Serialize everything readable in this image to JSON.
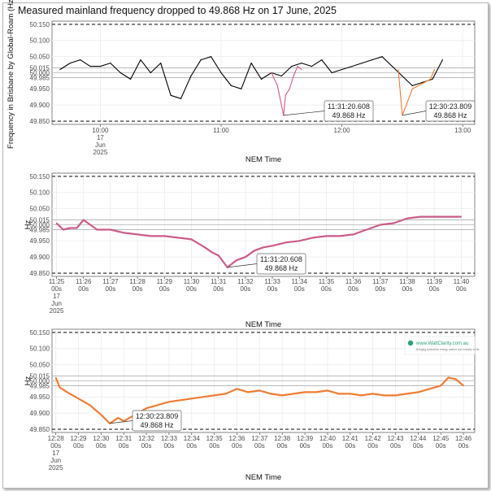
{
  "colors": {
    "full_day": "#000000",
    "first_drop": "#cc5c8a",
    "second_drop": "#ee7d33",
    "grid": "#ebebeb",
    "bound": "#222222",
    "ref": "#999999"
  },
  "logo": {
    "name": "www.WattClarity.com.au",
    "tagline": "Bringing Australia's energy market and industry to life"
  },
  "chart_data": [
    {
      "type": "line",
      "title": "Measured mainland frequency dropped to 49.868 Hz on 17 June, 2025",
      "xlabel": "NEM Time",
      "ylabel": "Frequency in Brisbane by Global-Roam (Hz)",
      "ylim": [
        49.84,
        50.16
      ],
      "yticks": [
        "49.850",
        "49.900",
        "49.950",
        "49.985",
        "50.000",
        "50.015",
        "50.050",
        "50.100",
        "50.150"
      ],
      "xlim": [
        "09:36",
        "13:06"
      ],
      "xticks": [
        {
          "t": "10:00",
          "label": [
            "10:00",
            "17",
            "Jun",
            "2025"
          ]
        },
        {
          "t": "11:00",
          "label": [
            "11:00"
          ]
        },
        {
          "t": "12:00",
          "label": [
            "12:00"
          ]
        },
        {
          "t": "13:00",
          "label": [
            "13:00"
          ]
        }
      ],
      "bound_lines": [
        49.85,
        50.15
      ],
      "ref_lines": [
        49.985,
        50.0,
        50.015
      ],
      "series": [
        {
          "color_key": "full_day",
          "x": [
            "09:40",
            "09:45",
            "09:50",
            "09:55",
            "10:00",
            "10:05",
            "10:10",
            "10:15",
            "10:20",
            "10:25",
            "10:30",
            "10:35",
            "10:40",
            "10:45",
            "10:50",
            "10:55",
            "11:00",
            "11:05",
            "11:10",
            "11:15",
            "11:20",
            "11:25",
            "11:30",
            "11:35",
            "11:40",
            "11:45",
            "11:50",
            "11:55",
            "12:00",
            "12:05",
            "12:10",
            "12:15",
            "12:20",
            "12:25",
            "12:30",
            "12:35",
            "12:40",
            "12:45",
            "12:50"
          ],
          "y": [
            50.01,
            50.03,
            50.04,
            50.02,
            50.02,
            50.03,
            50.0,
            49.98,
            50.04,
            50.0,
            50.03,
            49.93,
            49.92,
            49.99,
            50.04,
            50.05,
            50.0,
            49.96,
            49.95,
            50.03,
            49.98,
            50.0,
            49.99,
            50.02,
            50.03,
            50.02,
            50.04,
            50.0,
            50.01,
            50.02,
            50.03,
            50.04,
            50.05,
            50.02,
            49.99,
            49.96,
            49.97,
            49.98,
            50.04
          ]
        },
        {
          "color_key": "first_drop",
          "x": [
            "11:25",
            "11:28",
            "11:31",
            "11:32",
            "11:34",
            "11:36",
            "11:38",
            "11:40"
          ],
          "y": [
            50.0,
            49.96,
            49.868,
            49.93,
            49.95,
            49.99,
            50.02,
            50.01
          ]
        },
        {
          "color_key": "second_drop",
          "x": [
            "12:28",
            "12:29",
            "12:30",
            "12:32",
            "12:35",
            "12:38",
            "12:41",
            "12:44",
            "12:46"
          ],
          "y": [
            50.01,
            49.94,
            49.868,
            49.9,
            49.95,
            49.96,
            49.97,
            49.98,
            50.01
          ]
        }
      ],
      "annotations": [
        {
          "t": "11:31",
          "value": 49.868,
          "lines": [
            "11:31:20.608",
            "49.868 Hz"
          ]
        },
        {
          "t": "12:30",
          "value": 49.868,
          "lines": [
            "12:30:23.809",
            "49.868 Hz"
          ]
        }
      ]
    },
    {
      "type": "line",
      "xlabel": "NEM Time",
      "ylabel": "Hz",
      "ylim": [
        49.84,
        50.16
      ],
      "yticks": [
        "49.850",
        "49.900",
        "49.950",
        "49.985",
        "50.000",
        "50.015",
        "50.050",
        "50.100",
        "50.150"
      ],
      "xlim": [
        "11:24:50",
        "11:40:30"
      ],
      "xticks": [
        {
          "t": "11:25:00",
          "label": [
            "11:25",
            "00s",
            "17",
            "Jun",
            "2025"
          ]
        },
        {
          "t": "11:26:00",
          "label": [
            "11:26",
            "00s"
          ]
        },
        {
          "t": "11:27:00",
          "label": [
            "11:27",
            "00s"
          ]
        },
        {
          "t": "11:28:00",
          "label": [
            "11:28",
            "00s"
          ]
        },
        {
          "t": "11:29:00",
          "label": [
            "11:29",
            "00s"
          ]
        },
        {
          "t": "11:30:00",
          "label": [
            "11:30",
            "00s"
          ]
        },
        {
          "t": "11:31:00",
          "label": [
            "11:31",
            "00s"
          ]
        },
        {
          "t": "11:32:00",
          "label": [
            "11:32",
            "00s"
          ]
        },
        {
          "t": "11:33:00",
          "label": [
            "11:33",
            "00s"
          ]
        },
        {
          "t": "11:34:00",
          "label": [
            "11:34",
            "00s"
          ]
        },
        {
          "t": "11:35:00",
          "label": [
            "11:35",
            "00s"
          ]
        },
        {
          "t": "11:36:00",
          "label": [
            "11:36",
            "00s"
          ]
        },
        {
          "t": "11:37:00",
          "label": [
            "11:37",
            "00s"
          ]
        },
        {
          "t": "11:38:00",
          "label": [
            "11:38",
            "00s"
          ]
        },
        {
          "t": "11:39:00",
          "label": [
            "11:39",
            "00s"
          ]
        },
        {
          "t": "11:40:00",
          "label": [
            "11:40",
            "00s"
          ]
        }
      ],
      "bound_lines": [
        49.85,
        50.15
      ],
      "ref_lines": [
        49.985,
        50.0,
        50.015
      ],
      "series": [
        {
          "color_key": "first_drop",
          "x": [
            "11:25:00",
            "11:25:15",
            "11:25:30",
            "11:25:45",
            "11:26:00",
            "11:26:30",
            "11:27:00",
            "11:27:30",
            "11:28:00",
            "11:28:30",
            "11:29:00",
            "11:29:30",
            "11:30:00",
            "11:30:30",
            "11:30:45",
            "11:31:00",
            "11:31:20",
            "11:31:40",
            "11:32:00",
            "11:32:20",
            "11:32:40",
            "11:33:00",
            "11:33:30",
            "11:34:00",
            "11:34:30",
            "11:35:00",
            "11:35:30",
            "11:36:00",
            "11:36:30",
            "11:37:00",
            "11:37:30",
            "11:38:00",
            "11:38:30",
            "11:39:00",
            "11:39:30",
            "11:40:00"
          ],
          "y": [
            50.005,
            49.985,
            49.99,
            49.99,
            50.015,
            49.985,
            49.985,
            49.975,
            49.97,
            49.965,
            49.965,
            49.96,
            49.955,
            49.93,
            49.915,
            49.905,
            49.868,
            49.89,
            49.9,
            49.92,
            49.93,
            49.935,
            49.945,
            49.95,
            49.96,
            49.965,
            49.965,
            49.97,
            49.985,
            50.0,
            50.005,
            50.02,
            50.025,
            50.025,
            50.025,
            50.025
          ]
        }
      ],
      "annotations": [
        {
          "t": "11:31:20",
          "value": 49.868,
          "lines": [
            "11:31:20.608",
            "49.868 Hz"
          ]
        }
      ]
    },
    {
      "type": "line",
      "xlabel": "NEM Time",
      "ylabel": "Hz",
      "ylim": [
        49.84,
        50.16
      ],
      "yticks": [
        "49.850",
        "49.900",
        "49.950",
        "49.985",
        "50.000",
        "50.015",
        "50.050",
        "50.100",
        "50.150"
      ],
      "xlim": [
        "12:27:50",
        "12:46:30"
      ],
      "xticks": [
        {
          "t": "12:28:00",
          "label": [
            "12:28",
            "00s",
            "17",
            "Jun",
            "2025"
          ]
        },
        {
          "t": "12:29:00",
          "label": [
            "12:29",
            "00s"
          ]
        },
        {
          "t": "12:30:00",
          "label": [
            "12:30",
            "00s"
          ]
        },
        {
          "t": "12:31:00",
          "label": [
            "12:31",
            "00s"
          ]
        },
        {
          "t": "12:32:00",
          "label": [
            "12:32",
            "00s"
          ]
        },
        {
          "t": "12:33:00",
          "label": [
            "12:33",
            "00s"
          ]
        },
        {
          "t": "12:34:00",
          "label": [
            "12:34",
            "00s"
          ]
        },
        {
          "t": "12:35:00",
          "label": [
            "12:35",
            "00s"
          ]
        },
        {
          "t": "12:36:00",
          "label": [
            "12:36",
            "00s"
          ]
        },
        {
          "t": "12:37:00",
          "label": [
            "12:37",
            "00s"
          ]
        },
        {
          "t": "12:38:00",
          "label": [
            "12:38",
            "00s"
          ]
        },
        {
          "t": "12:39:00",
          "label": [
            "12:39",
            "00s"
          ]
        },
        {
          "t": "12:40:00",
          "label": [
            "12:40",
            "00s"
          ]
        },
        {
          "t": "12:41:00",
          "label": [
            "12:41",
            "00s"
          ]
        },
        {
          "t": "12:42:00",
          "label": [
            "12:42",
            "00s"
          ]
        },
        {
          "t": "12:43:00",
          "label": [
            "12:43",
            "00s"
          ]
        },
        {
          "t": "12:44:00",
          "label": [
            "12:44",
            "00s"
          ]
        },
        {
          "t": "12:45:00",
          "label": [
            "12:45",
            "00s"
          ]
        },
        {
          "t": "12:46:00",
          "label": [
            "12:46",
            "00s"
          ]
        }
      ],
      "bound_lines": [
        49.85,
        50.15
      ],
      "ref_lines": [
        49.985,
        50.0,
        50.015
      ],
      "series": [
        {
          "color_key": "second_drop",
          "x": [
            "12:28:00",
            "12:28:10",
            "12:28:30",
            "12:29:00",
            "12:29:30",
            "12:30:00",
            "12:30:23",
            "12:30:45",
            "12:31:00",
            "12:31:30",
            "12:32:00",
            "12:32:30",
            "12:33:00",
            "12:33:30",
            "12:34:00",
            "12:34:30",
            "12:35:00",
            "12:35:30",
            "12:36:00",
            "12:36:30",
            "12:37:00",
            "12:37:30",
            "12:38:00",
            "12:38:30",
            "12:39:00",
            "12:39:30",
            "12:40:00",
            "12:40:30",
            "12:41:00",
            "12:41:30",
            "12:42:00",
            "12:42:30",
            "12:43:00",
            "12:43:30",
            "12:44:00",
            "12:44:30",
            "12:45:00",
            "12:45:20",
            "12:45:40",
            "12:46:00"
          ],
          "y": [
            50.01,
            49.98,
            49.965,
            49.945,
            49.925,
            49.895,
            49.868,
            49.885,
            49.875,
            49.895,
            49.915,
            49.925,
            49.935,
            49.94,
            49.945,
            49.95,
            49.955,
            49.96,
            49.975,
            49.965,
            49.97,
            49.96,
            49.955,
            49.96,
            49.965,
            49.965,
            49.97,
            49.96,
            49.96,
            49.955,
            49.96,
            49.955,
            49.955,
            49.96,
            49.965,
            49.975,
            49.985,
            50.01,
            50.005,
            49.985
          ]
        }
      ],
      "annotations": [
        {
          "t": "12:30:23",
          "value": 49.868,
          "lines": [
            "12:30:23.809",
            "49.868 Hz"
          ]
        }
      ]
    }
  ]
}
